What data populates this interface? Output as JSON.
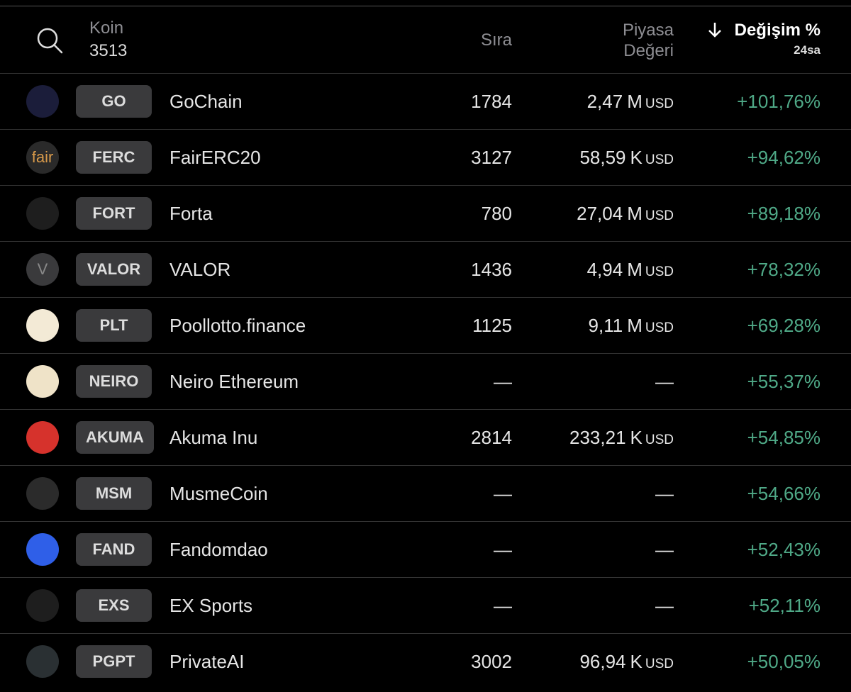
{
  "header": {
    "coin_label": "Koin",
    "coin_count": "3513",
    "rank_label": "Sıra",
    "market_cap_label": "Piyasa Değeri",
    "change_label": "Değişim %",
    "change_period": "24sa"
  },
  "rows": [
    {
      "symbol": "GO",
      "name": "GoChain",
      "rank": "1784",
      "market_cap": "2,47",
      "market_cap_unit": "M",
      "currency": "USD",
      "change": "+101,76%"
    },
    {
      "logo_text": "fair",
      "symbol": "FERC",
      "name": "FairERC20",
      "rank": "3127",
      "market_cap": "58,59",
      "market_cap_unit": "K",
      "currency": "USD",
      "change": "+94,62%"
    },
    {
      "symbol": "FORT",
      "name": "Forta",
      "rank": "780",
      "market_cap": "27,04",
      "market_cap_unit": "M",
      "currency": "USD",
      "change": "+89,18%"
    },
    {
      "logo_text": "V",
      "symbol": "VALOR",
      "name": "VALOR",
      "rank": "1436",
      "market_cap": "4,94",
      "market_cap_unit": "M",
      "currency": "USD",
      "change": "+78,32%"
    },
    {
      "symbol": "PLT",
      "name": "Poollotto.finance",
      "rank": "1125",
      "market_cap": "9,11",
      "market_cap_unit": "M",
      "currency": "USD",
      "change": "+69,28%"
    },
    {
      "symbol": "NEIRO",
      "name": "Neiro Ethereum",
      "rank": "—",
      "market_cap": "—",
      "change": "+55,37%"
    },
    {
      "symbol": "AKUMA",
      "name": "Akuma Inu",
      "rank": "2814",
      "market_cap": "233,21",
      "market_cap_unit": "K",
      "currency": "USD",
      "change": "+54,85%"
    },
    {
      "symbol": "MSM",
      "name": "MusmeCoin",
      "rank": "—",
      "market_cap": "—",
      "change": "+54,66%"
    },
    {
      "symbol": "FAND",
      "name": "Fandomdao",
      "rank": "—",
      "market_cap": "—",
      "change": "+52,43%"
    },
    {
      "symbol": "EXS",
      "name": "EX Sports",
      "rank": "—",
      "market_cap": "—",
      "change": "+52,11%"
    },
    {
      "symbol": "PGPT",
      "name": "PrivateAI",
      "rank": "3002",
      "market_cap": "96,94",
      "market_cap_unit": "K",
      "currency": "USD",
      "change": "+50,05%"
    }
  ]
}
